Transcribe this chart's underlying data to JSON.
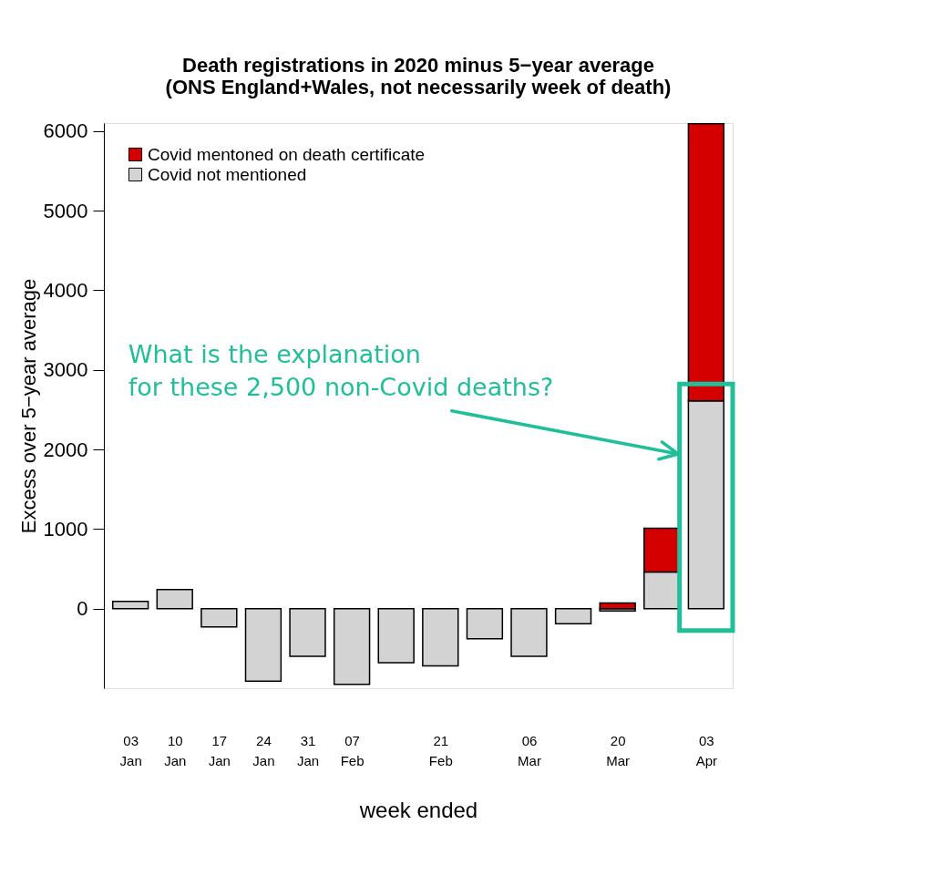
{
  "chart_data": {
    "type": "bar",
    "title": [
      "Death registrations in 2020 minus 5−year average",
      "(ONS England+Wales, not necessarily week of death)"
    ],
    "xlabel": "week ended",
    "ylabel": "Excess over 5−year average",
    "categories": [
      "03 Jan",
      "10 Jan",
      "17 Jan",
      "24 Jan",
      "31 Jan",
      "07 Feb",
      null,
      "21 Feb",
      null,
      "06 Mar",
      null,
      "20 Mar",
      null,
      "03 Apr"
    ],
    "stacked": true,
    "series": [
      {
        "name": "Covid not mentioned",
        "color": "#d3d3d3",
        "values": [
          90,
          240,
          -230,
          -910,
          -600,
          -950,
          -680,
          -720,
          -380,
          -600,
          -190,
          -30,
          460,
          2610
        ]
      },
      {
        "name": "Covid mentoned on death certificate",
        "color": "#d40000",
        "values": [
          null,
          null,
          null,
          null,
          null,
          null,
          null,
          null,
          null,
          null,
          null,
          70,
          550,
          3480
        ]
      }
    ],
    "ylim": [
      -1000,
      6100
    ],
    "yticks": [
      0,
      1000,
      2000,
      3000,
      4000,
      5000,
      6000
    ],
    "grid": false,
    "legend": "top left",
    "annotations": [
      "What is the explanation\nfor these 2,500 non-Covid deaths?"
    ]
  }
}
